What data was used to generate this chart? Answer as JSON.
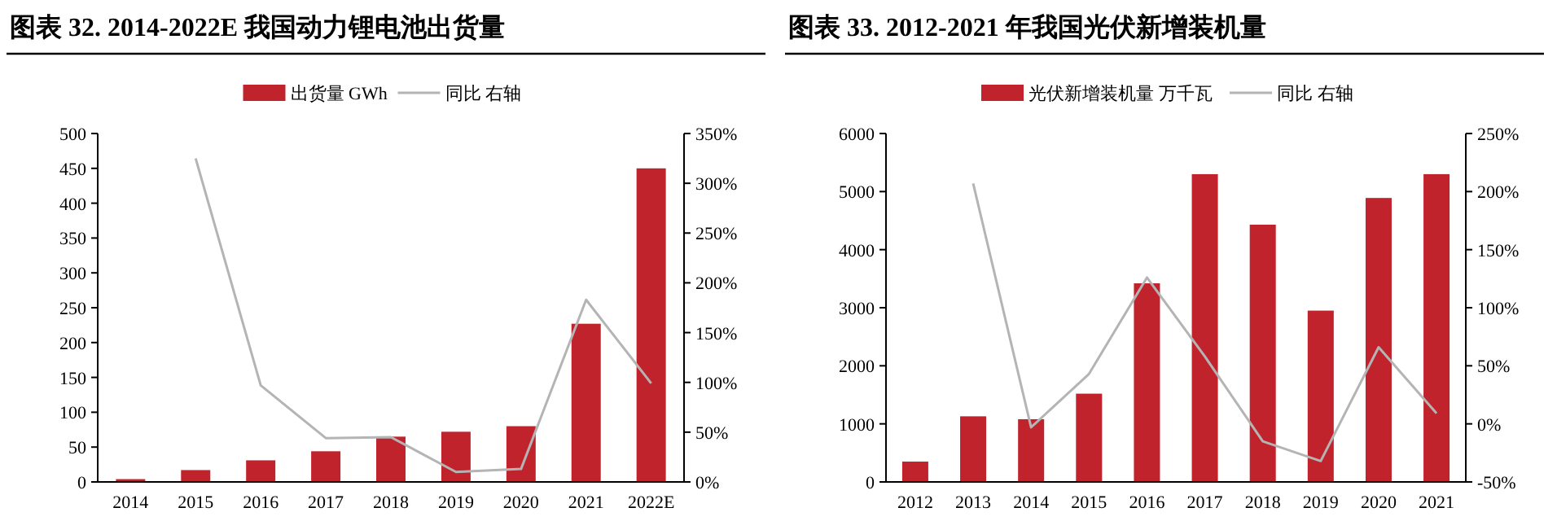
{
  "chart_data": [
    {
      "type": "bar",
      "title": "图表 32. 2014-2022E 我国动力锂电池出货量",
      "categories": [
        "2014",
        "2015",
        "2016",
        "2017",
        "2018",
        "2019",
        "2020",
        "2021",
        "2022E"
      ],
      "series": [
        {
          "name": "出货量 GWh",
          "color": "#c0232c",
          "values": [
            4,
            17,
            31,
            44,
            65,
            72,
            80,
            227,
            450
          ]
        },
        {
          "name": "同比 右轴",
          "type": "line",
          "axis": "y2",
          "color": "#b4b4b4",
          "values": [
            null,
            325,
            97,
            44,
            45,
            10,
            13,
            183,
            99
          ]
        }
      ],
      "ylim": [
        0,
        500
      ],
      "yticks": [
        0,
        50,
        100,
        150,
        200,
        250,
        300,
        350,
        400,
        450,
        500
      ],
      "y2lim": [
        0,
        350
      ],
      "y2ticks": [
        {
          "value": 0,
          "label": "0%"
        },
        {
          "value": 50,
          "label": "50%"
        },
        {
          "value": 100,
          "label": "100%"
        },
        {
          "value": 150,
          "label": "150%"
        },
        {
          "value": 200,
          "label": "200%"
        },
        {
          "value": 250,
          "label": "250%"
        },
        {
          "value": 300,
          "label": "300%"
        },
        {
          "value": 350,
          "label": "350%"
        }
      ],
      "legend": "top",
      "grid": false
    },
    {
      "type": "bar",
      "title": "图表 33. 2012-2021 年我国光伏新增装机量",
      "categories": [
        "2012",
        "2013",
        "2014",
        "2015",
        "2016",
        "2017",
        "2018",
        "2019",
        "2020",
        "2021"
      ],
      "series": [
        {
          "name": "光伏新增装机量 万千瓦",
          "color": "#c0232c",
          "values": [
            350,
            1130,
            1080,
            1520,
            3420,
            5300,
            4430,
            2950,
            4890,
            5300
          ]
        },
        {
          "name": "同比 右轴",
          "type": "line",
          "axis": "y2",
          "color": "#b4b4b4",
          "values": [
            null,
            207,
            -3,
            43,
            126,
            58,
            -15,
            -32,
            66,
            9
          ]
        }
      ],
      "ylim": [
        0,
        6000
      ],
      "yticks": [
        0,
        1000,
        2000,
        3000,
        4000,
        5000,
        6000
      ],
      "y2lim": [
        -50,
        250
      ],
      "y2ticks": [
        {
          "value": -50,
          "label": "-50%"
        },
        {
          "value": 0,
          "label": "0%"
        },
        {
          "value": 50,
          "label": "50%"
        },
        {
          "value": 100,
          "label": "100%"
        },
        {
          "value": 150,
          "label": "150%"
        },
        {
          "value": 200,
          "label": "200%"
        },
        {
          "value": 250,
          "label": "250%"
        }
      ],
      "legend": "top",
      "grid": false
    }
  ]
}
